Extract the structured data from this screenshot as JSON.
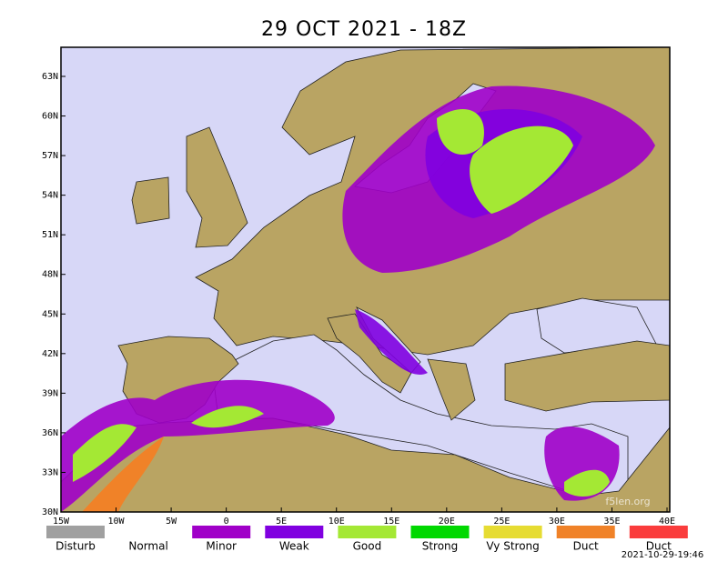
{
  "title": "29 OCT 2021 - 18Z",
  "lat_labels": [
    "63N",
    "60N",
    "57N",
    "54N",
    "51N",
    "48N",
    "45N",
    "42N",
    "39N",
    "36N",
    "33N",
    "30N"
  ],
  "lon_labels": [
    "15W",
    "10W",
    "5W",
    "0",
    "5E",
    "10E",
    "15E",
    "20E",
    "25E",
    "30E",
    "35E",
    "40E"
  ],
  "legend": [
    {
      "label": "Disturb",
      "color": "#a0a0a0"
    },
    {
      "label": "Normal",
      "color": "#ffffff"
    },
    {
      "label": "Minor",
      "color": "#a000c8"
    },
    {
      "label": "Weak",
      "color": "#8000e0"
    },
    {
      "label": "Good",
      "color": "#a4e834"
    },
    {
      "label": "Strong",
      "color": "#00d800"
    },
    {
      "label": "Vy Strong",
      "color": "#e6dc32"
    },
    {
      "label": "Duct",
      "color": "#f08228"
    },
    {
      "label": "Duct",
      "color": "#fa3c3c"
    }
  ],
  "watermark": "f5len.org",
  "timestamp": "2021-10-29-19:46"
}
